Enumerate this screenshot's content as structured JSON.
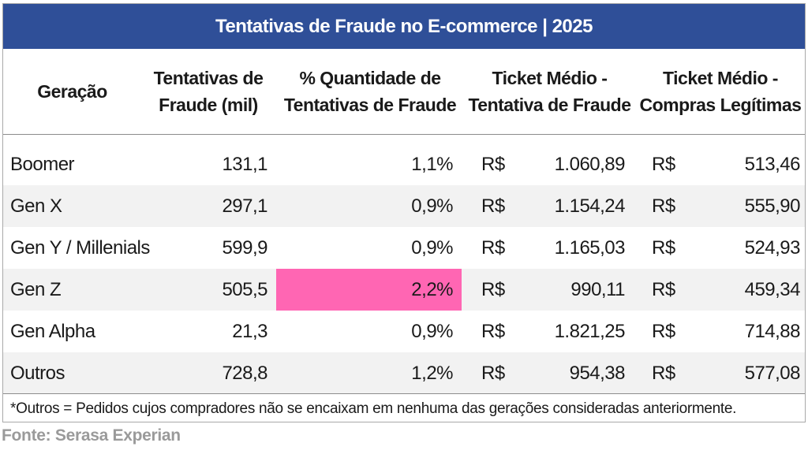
{
  "title": "Tentativas de Fraude no E-commerce | 2025",
  "headers": {
    "geracao": [
      "Geração"
    ],
    "tentativas": [
      "Tentativas",
      "de",
      "Fraude (mil)"
    ],
    "pct": [
      "% Quantidade de",
      "Tentativas de Fraude"
    ],
    "ticket_fraude": [
      "Ticket Médio -",
      "Tentativa de Fraude"
    ],
    "ticket_legit": [
      "Ticket Médio -",
      "Compras Legítimas"
    ]
  },
  "header_lines": {
    "geracao": "Geração",
    "tentativas_1": "Tentativas de",
    "tentativas_2": "Fraude (mil)",
    "pct_1": "% Quantidade de",
    "pct_2": "Tentativas de Fraude",
    "tf_1": "Ticket Médio -",
    "tf_2": "Tentativa de Fraude",
    "tl_1": "Ticket Médio -",
    "tl_2": "Compras Legítimas"
  },
  "rows": [
    {
      "geracao": "Boomer",
      "tentativas": "131,1",
      "pct": "1,1%",
      "cur1": "R$",
      "ticket_fraude": "1.060,89",
      "cur2": "R$",
      "ticket_legit": "513,46"
    },
    {
      "geracao": "Gen X",
      "tentativas": "297,1",
      "pct": "0,9%",
      "cur1": "R$",
      "ticket_fraude": "1.154,24",
      "cur2": "R$",
      "ticket_legit": "555,90"
    },
    {
      "geracao": "Gen Y / Millenials",
      "tentativas": "599,9",
      "pct": "0,9%",
      "cur1": "R$",
      "ticket_fraude": "1.165,03",
      "cur2": "R$",
      "ticket_legit": "524,93"
    },
    {
      "geracao": "Gen Z",
      "tentativas": "505,5",
      "pct": "2,2%",
      "cur1": "R$",
      "ticket_fraude": "990,11",
      "cur2": "R$",
      "ticket_legit": "459,34"
    },
    {
      "geracao": "Gen Alpha",
      "tentativas": "21,3",
      "pct": "0,9%",
      "cur1": "R$",
      "ticket_fraude": "1.821,25",
      "cur2": "R$",
      "ticket_legit": "714,88"
    },
    {
      "geracao": "Outros",
      "tentativas": "728,8",
      "pct": "1,2%",
      "cur1": "R$",
      "ticket_fraude": "954,38",
      "cur2": "R$",
      "ticket_legit": "577,08"
    }
  ],
  "highlight_row": 3,
  "colors": {
    "title_bg": "#2f4f98",
    "highlight": "#ff66b3",
    "row_shade": "#f2f2f2",
    "source_text": "#9a9a9a"
  },
  "footnote": "*Outros = Pedidos cujos compradores não se encaixam em nenhuma das gerações consideradas anteriormente.",
  "source": "Fonte: Serasa Experian"
}
